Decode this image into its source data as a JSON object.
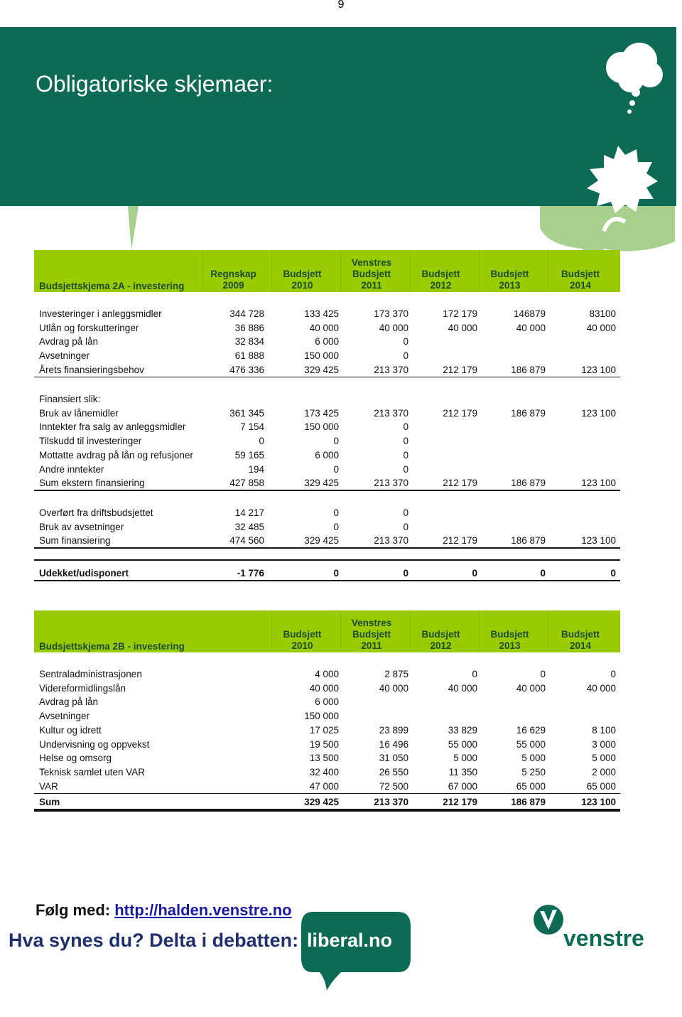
{
  "page_number": "9",
  "banner": {
    "title": "Obligatoriske skjemaer:"
  },
  "tables": [
    {
      "title": "Budsjettskjema 2A - investering",
      "headers": [
        [
          "Regnskap",
          "2009"
        ],
        [
          "Budsjett",
          "2010"
        ],
        [
          "Venstres",
          "Budsjett",
          "2011"
        ],
        [
          "Budsjett",
          "2012"
        ],
        [
          "Budsjett",
          "2013"
        ],
        [
          "Budsjett",
          "2014"
        ]
      ],
      "sections": [
        [
          [
            "Investeringer i anleggsmidler",
            "344 728",
            "133 425",
            "173 370",
            "172 179",
            "146879",
            "83100"
          ],
          [
            "Utlån og forskutteringer",
            "36 886",
            "40 000",
            "40 000",
            "40 000",
            "40 000",
            "40 000"
          ],
          [
            "Avdrag på lån",
            "32 834",
            "6 000",
            "0"
          ],
          [
            "Avsetninger",
            "61 888",
            "150 000",
            "0"
          ],
          [
            "Årets finansieringsbehov",
            "476 336",
            "329 425",
            "213 370",
            "212 179",
            "186 879",
            "123 100"
          ]
        ],
        [
          [
            "Finansiert slik:"
          ],
          [
            "Bruk av lånemidler",
            "361 345",
            "173 425",
            "213 370",
            "212 179",
            "186 879",
            "123 100"
          ],
          [
            "Inntekter fra salg av anleggsmidler",
            "7 154",
            "150 000",
            "0"
          ],
          [
            "Tilskudd til investeringer",
            "0",
            "0",
            "0"
          ],
          [
            "Mottatte avdrag på lån og refusjoner",
            "59 165",
            "6 000",
            "0"
          ],
          [
            "Andre inntekter",
            "194",
            "0",
            "0"
          ],
          [
            "Sum ekstern finansiering",
            "427 858",
            "329 425",
            "213 370",
            "212 179",
            "186 879",
            "123 100"
          ]
        ],
        [
          [
            "Overført fra driftsbudsjettet",
            "14 217",
            "0",
            "0"
          ],
          [
            "Bruk av avsetninger",
            "32 485",
            "0",
            "0"
          ],
          [
            "Sum finansiering",
            "474 560",
            "329 425",
            "213 370",
            "212 179",
            "186 879",
            "123 100"
          ]
        ],
        [
          [
            "Udekket/udisponert",
            "-1 776",
            "0",
            "0",
            "0",
            "0",
            "0"
          ]
        ]
      ]
    },
    {
      "title": "Budsjettskjema 2B - investering",
      "headers": [
        [
          "Budsjett",
          "2010"
        ],
        [
          "Venstres",
          "Budsjett",
          "2011"
        ],
        [
          "Budsjett",
          "2012"
        ],
        [
          "Budsjett",
          "2013"
        ],
        [
          "Budsjett",
          "2014"
        ]
      ],
      "sections": [
        [
          [
            "Sentraladministrasjonen",
            "4 000",
            "2 875",
            "0",
            "0",
            "0"
          ],
          [
            "Videreformidlingslån",
            "40 000",
            "40 000",
            "40 000",
            "40 000",
            "40 000"
          ],
          [
            "Avdrag på lån",
            "6 000"
          ],
          [
            "Avsetninger",
            "150 000"
          ],
          [
            "Kultur og idrett",
            "17 025",
            "23 899",
            "33 829",
            "16 629",
            "8 100"
          ],
          [
            "Undervisning og oppvekst",
            "19 500",
            "16 496",
            "55 000",
            "55 000",
            "3 000"
          ],
          [
            "Helse og omsorg",
            "13 500",
            "31 050",
            "5 000",
            "5 000",
            "5 000"
          ],
          [
            "Teknisk samlet uten  VAR",
            "32 400",
            "26 550",
            "11 350",
            "5 250",
            "2 000"
          ],
          [
            "VAR",
            "47 000",
            "72 500",
            "67 000",
            "65 000",
            "65 000"
          ]
        ],
        [
          [
            "Sum",
            "329 425",
            "213 370",
            "212 179",
            "186 879",
            "123 100"
          ]
        ]
      ]
    }
  ],
  "footer": {
    "follow": "Følg med:",
    "link": "http://halden.venstre.no",
    "slogan": "Hva synes du? Delta i debatten:",
    "bubble": "liberal.no",
    "logo": "venstre"
  }
}
